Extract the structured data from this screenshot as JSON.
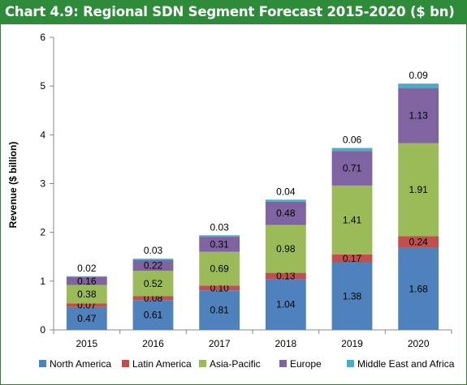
{
  "title": "Chart 4.9: Regional SDN Segment Forecast 2015-2020 ($ bn)",
  "chart_data": {
    "type": "bar",
    "stacked": true,
    "title": "Chart 4.9: Regional SDN Segment Forecast 2015-2020 ($ bn)",
    "xlabel": "",
    "ylabel": "Revenue ($ billion)",
    "ylim": [
      0,
      6
    ],
    "yticks": [
      0,
      1,
      2,
      3,
      4,
      5,
      6
    ],
    "grid": false,
    "legend_position": "bottom",
    "categories": [
      "2015",
      "2016",
      "2017",
      "2018",
      "2019",
      "2020"
    ],
    "series": [
      {
        "name": "North America",
        "color": "#4f81bd",
        "values": [
          0.47,
          0.61,
          0.81,
          1.04,
          1.38,
          1.68
        ]
      },
      {
        "name": "Latin America",
        "color": "#c0504d",
        "values": [
          0.07,
          0.08,
          0.1,
          0.13,
          0.17,
          0.24
        ]
      },
      {
        "name": "Asia-Pacific",
        "color": "#9bbb59",
        "values": [
          0.38,
          0.52,
          0.69,
          0.98,
          1.41,
          1.91
        ]
      },
      {
        "name": "Europe",
        "color": "#8064a2",
        "values": [
          0.16,
          0.22,
          0.31,
          0.48,
          0.71,
          1.13
        ]
      },
      {
        "name": "Middle East and Africa",
        "color": "#4bacc6",
        "values": [
          0.02,
          0.03,
          0.03,
          0.04,
          0.06,
          0.09
        ]
      }
    ]
  }
}
